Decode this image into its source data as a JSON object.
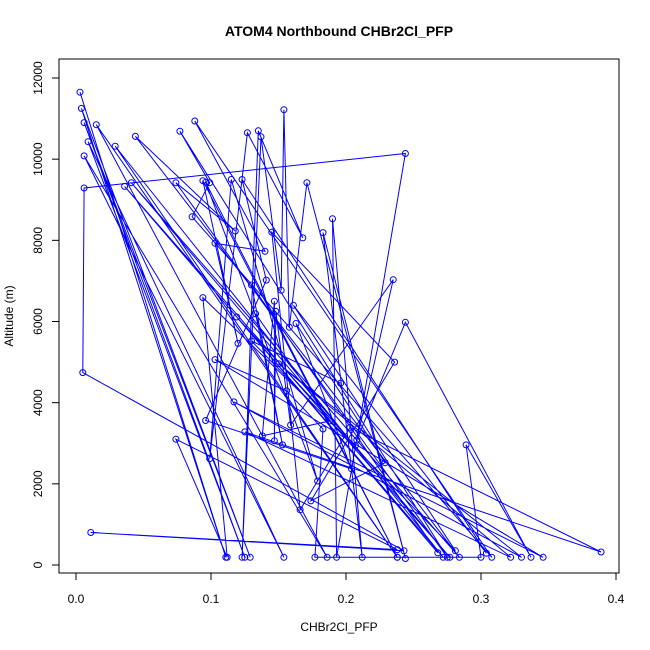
{
  "chart_data": {
    "type": "line",
    "title": "ATOM4 Northbound CHBr2Cl_PFP",
    "xlabel": "CHBr2Cl_PFP",
    "ylabel": "Altitude (m)",
    "xlim": [
      0.0,
      0.4
    ],
    "ylim": [
      0,
      12000
    ],
    "x_ticks": [
      "0.0",
      "0.1",
      "0.2",
      "0.3",
      "0.4"
    ],
    "y_ticks": [
      "0",
      "2000",
      "4000",
      "6000",
      "8000",
      "10000",
      "12000"
    ],
    "grid": false,
    "legend": "none",
    "marker": "open-circle",
    "series": [
      {
        "color": "#0000ff",
        "points": [
          [
            0.003,
            11650
          ],
          [
            0.111,
            190
          ],
          [
            0.004,
            11250
          ],
          [
            0.129,
            190
          ],
          [
            0.006,
            10900
          ],
          [
            0.125,
            190
          ],
          [
            0.009,
            10430
          ],
          [
            0.154,
            190
          ],
          [
            0.006,
            10080
          ],
          [
            0.186,
            190
          ],
          [
            0.015,
            10850
          ],
          [
            0.238,
            190
          ],
          [
            0.029,
            10320
          ],
          [
            0.272,
            190
          ],
          [
            0.036,
            9330
          ],
          [
            0.277,
            190
          ],
          [
            0.041,
            9420
          ],
          [
            0.284,
            190
          ],
          [
            0.044,
            10560
          ],
          [
            0.118,
            8230
          ],
          [
            0.074,
            9420
          ],
          [
            0.275,
            190
          ],
          [
            0.077,
            10690
          ],
          [
            0.099,
            9420
          ],
          [
            0.086,
            8580
          ],
          [
            0.308,
            190
          ],
          [
            0.088,
            10940
          ],
          [
            0.14,
            7730
          ],
          [
            0.103,
            7930
          ],
          [
            0.12,
            5460
          ],
          [
            0.094,
            9470
          ],
          [
            0.238,
            190
          ],
          [
            0.096,
            9430
          ],
          [
            0.179,
            2070
          ],
          [
            0.115,
            9500
          ],
          [
            0.099,
            2620
          ],
          [
            0.127,
            10650
          ],
          [
            0.168,
            8060
          ],
          [
            0.135,
            10700
          ],
          [
            0.123,
            190
          ],
          [
            0.137,
            10550
          ],
          [
            0.152,
            6770
          ],
          [
            0.154,
            11220
          ],
          [
            0.158,
            5860
          ],
          [
            0.171,
            9420
          ],
          [
            0.244,
            160
          ],
          [
            0.183,
            8190
          ],
          [
            0.212,
            190
          ],
          [
            0.19,
            8530
          ],
          [
            0.193,
            190
          ],
          [
            0.244,
            10140
          ],
          [
            0.006,
            9290
          ],
          [
            0.005,
            4740
          ],
          [
            0.243,
            350
          ],
          [
            0.011,
            800
          ],
          [
            0.238,
            380
          ],
          [
            0.074,
            3100
          ],
          [
            0.112,
            190
          ],
          [
            0.094,
            6590
          ],
          [
            0.207,
            2940
          ],
          [
            0.119,
            6110
          ],
          [
            0.268,
            300
          ],
          [
            0.13,
            6900
          ],
          [
            0.153,
            2960
          ],
          [
            0.133,
            6190
          ],
          [
            0.188,
            3550
          ],
          [
            0.138,
            3180
          ],
          [
            0.147,
            6500
          ],
          [
            0.147,
            3060
          ],
          [
            0.148,
            6250
          ],
          [
            0.159,
            3450
          ],
          [
            0.235,
            7030
          ],
          [
            0.208,
            3080
          ],
          [
            0.244,
            5980
          ],
          [
            0.337,
            190
          ],
          [
            0.289,
            2960
          ],
          [
            0.3,
            190
          ],
          [
            0.177,
            190
          ],
          [
            0.183,
            3350
          ],
          [
            0.156,
            4290
          ],
          [
            0.103,
            5060
          ],
          [
            0.346,
            190
          ],
          [
            0.117,
            4020
          ],
          [
            0.33,
            190
          ],
          [
            0.15,
            4960
          ],
          [
            0.322,
            190
          ],
          [
            0.125,
            3280
          ],
          [
            0.389,
            320
          ],
          [
            0.203,
            3390
          ],
          [
            0.166,
            1360
          ],
          [
            0.145,
            8200
          ],
          [
            0.236,
            5000
          ],
          [
            0.174,
            1580
          ],
          [
            0.229,
            2520
          ],
          [
            0.163,
            5950
          ],
          [
            0.204,
            2370
          ],
          [
            0.096,
            3560
          ],
          [
            0.141,
            7020
          ],
          [
            0.123,
            9500
          ],
          [
            0.304,
            290
          ],
          [
            0.161,
            6400
          ],
          [
            0.281,
            350
          ],
          [
            0.13,
            5520
          ],
          [
            0.196,
            4480
          ]
        ]
      }
    ]
  }
}
